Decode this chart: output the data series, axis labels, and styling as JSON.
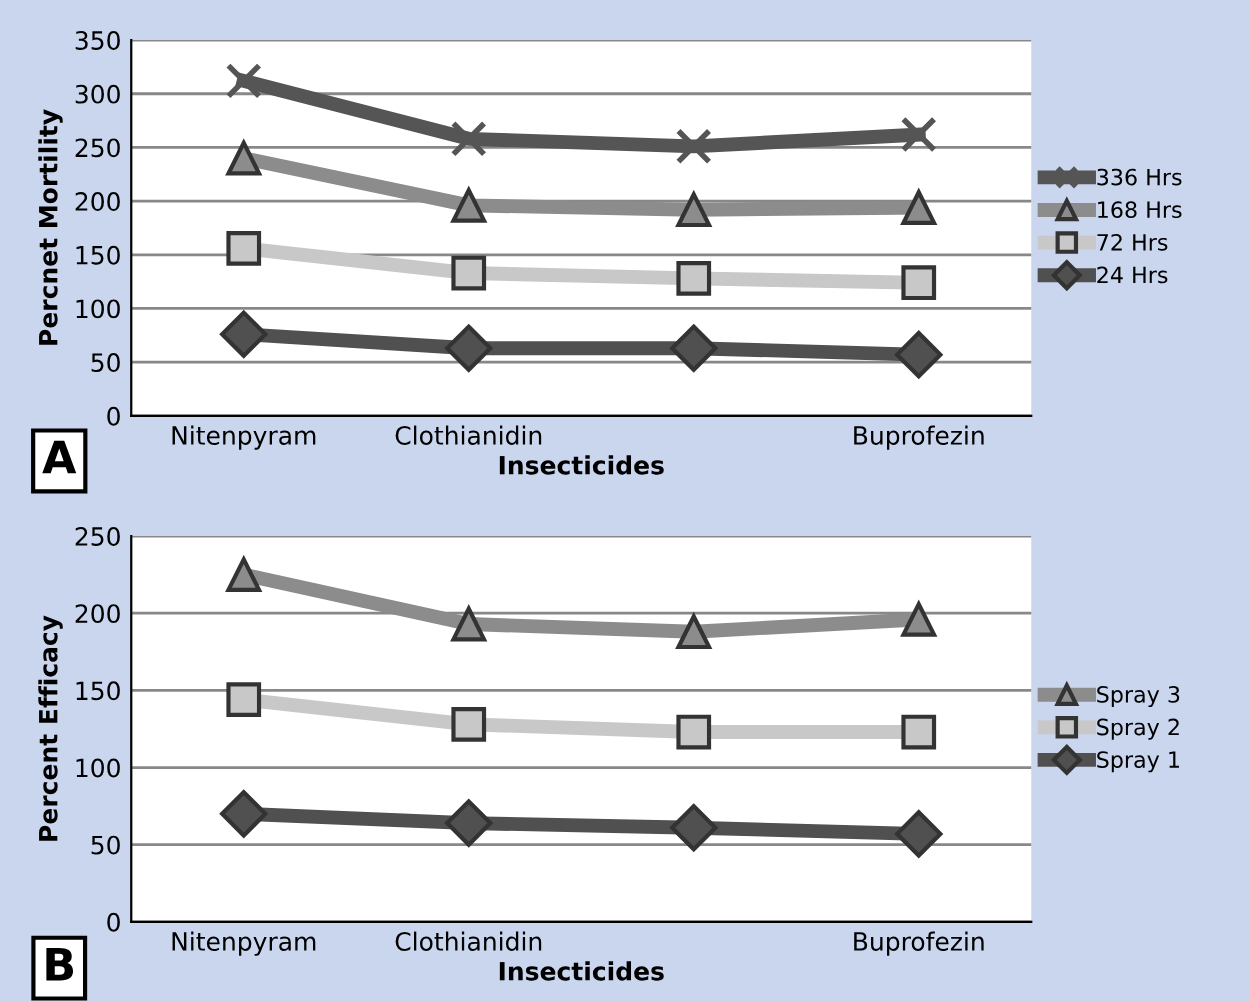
{
  "chart_data": [
    {
      "type": "line",
      "xlabel": "Insecticides",
      "ylabel": "Percnet Mortility",
      "categories": [
        "Nitenpyram",
        "Clothianidin",
        null,
        "Buprofezin"
      ],
      "series": [
        {
          "name": "336 Hrs",
          "color": "#555555",
          "marker": "cross",
          "values": [
            312,
            258,
            251,
            262
          ]
        },
        {
          "name": "168 Hrs",
          "color": "#8c8c8c",
          "marker": "triangle",
          "values": [
            240,
            196,
            192,
            194
          ]
        },
        {
          "name": "72 Hrs",
          "color": "#c8c8c8",
          "marker": "square",
          "values": [
            156,
            133,
            128,
            124
          ]
        },
        {
          "name": "24 Hrs",
          "color": "#505050",
          "marker": "diamond",
          "values": [
            76,
            63,
            63,
            57
          ]
        }
      ],
      "ylim": [
        0,
        350
      ],
      "yticks": [
        0,
        50,
        100,
        150,
        200,
        250,
        300,
        350
      ],
      "grid": "y",
      "legend": "right",
      "annotations": [
        "A"
      ]
    },
    {
      "type": "line",
      "xlabel": "Insecticides",
      "ylabel": "Percent Efficacy",
      "categories": [
        "Nitenpyram",
        "Clothianidin",
        null,
        "Buprofezin"
      ],
      "series": [
        {
          "name": "Spray 3",
          "color": "#8c8c8c",
          "marker": "triangle",
          "values": [
            225,
            193,
            188,
            196
          ]
        },
        {
          "name": "Spray 2",
          "color": "#c8c8c8",
          "marker": "square",
          "values": [
            144,
            128,
            123,
            123
          ]
        },
        {
          "name": "Spray 1",
          "color": "#505050",
          "marker": "diamond",
          "values": [
            70,
            64,
            61,
            57
          ]
        }
      ],
      "ylim": [
        0,
        250
      ],
      "yticks": [
        0,
        50,
        100,
        150,
        200,
        250
      ],
      "grid": "y",
      "legend": "right",
      "annotations": [
        "B"
      ]
    }
  ]
}
